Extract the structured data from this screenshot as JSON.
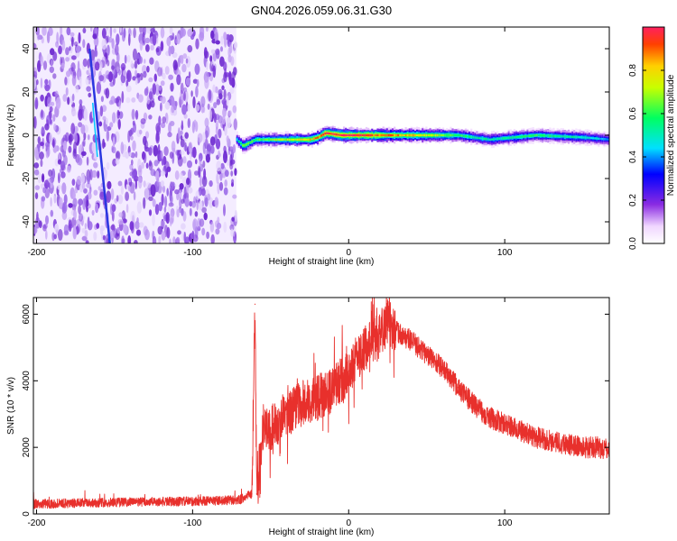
{
  "title": "GN04.2026.059.06.31.G30",
  "chart_data": [
    {
      "type": "heatmap",
      "xlabel": "Height of straight line (km)",
      "ylabel": "Frequency (Hz)",
      "xlim": [
        -202,
        167
      ],
      "ylim": [
        -50,
        50
      ],
      "xticks": [
        -200,
        -100,
        0,
        100
      ],
      "yticks": [
        40,
        20,
        0,
        -20,
        -40
      ],
      "colorbar": {
        "label": "Normalized spectral amplitude",
        "range": [
          0,
          1
        ],
        "ticks": [
          0.0,
          0.2,
          0.4,
          0.6,
          0.8
        ]
      },
      "noise_region_x": [
        -202,
        -72
      ],
      "streak": {
        "x_start": -166,
        "x_end": -153,
        "y_start": 40,
        "y_end": -50
      },
      "ridge": [
        {
          "x": -72,
          "y": -2,
          "a": 0.5
        },
        {
          "x": -68,
          "y": -5,
          "a": 0.7
        },
        {
          "x": -60,
          "y": -2,
          "a": 0.6
        },
        {
          "x": -40,
          "y": -2,
          "a": 0.7
        },
        {
          "x": -25,
          "y": -2,
          "a": 0.8
        },
        {
          "x": -20,
          "y": -1,
          "a": 0.9
        },
        {
          "x": -15,
          "y": 1,
          "a": 1.0
        },
        {
          "x": -5,
          "y": 0,
          "a": 1.0
        },
        {
          "x": 10,
          "y": 0,
          "a": 0.95
        },
        {
          "x": 40,
          "y": 0,
          "a": 0.8
        },
        {
          "x": 70,
          "y": 0,
          "a": 0.6
        },
        {
          "x": 90,
          "y": -2,
          "a": 0.5
        },
        {
          "x": 120,
          "y": 0,
          "a": 0.6
        },
        {
          "x": 150,
          "y": -1,
          "a": 0.5
        },
        {
          "x": 167,
          "y": -2,
          "a": 0.4
        }
      ]
    },
    {
      "type": "line",
      "xlabel": "Height of straight line (km)",
      "ylabel": "SNR (10 * v/v)",
      "xlim": [
        -202,
        167
      ],
      "ylim": [
        0,
        6500
      ],
      "xticks": [
        -200,
        -100,
        0,
        100
      ],
      "yticks": [
        0,
        2000,
        4000,
        6000
      ],
      "series": [
        {
          "color": "#e8302c",
          "x": [
            -202,
            -150,
            -100,
            -70,
            -62,
            -60,
            -59,
            -55,
            -50,
            -40,
            -30,
            -20,
            -10,
            0,
            10,
            20,
            25,
            30,
            40,
            50,
            60,
            70,
            80,
            90,
            100,
            110,
            120,
            130,
            140,
            150,
            160,
            167
          ],
          "y": [
            300,
            350,
            380,
            420,
            600,
            6300,
            600,
            2600,
            2600,
            3000,
            3300,
            3500,
            3700,
            4300,
            5000,
            5400,
            5800,
            5500,
            5200,
            4800,
            4400,
            3800,
            3300,
            2900,
            2700,
            2500,
            2300,
            2200,
            2100,
            2000,
            2000,
            1900
          ]
        }
      ]
    }
  ]
}
